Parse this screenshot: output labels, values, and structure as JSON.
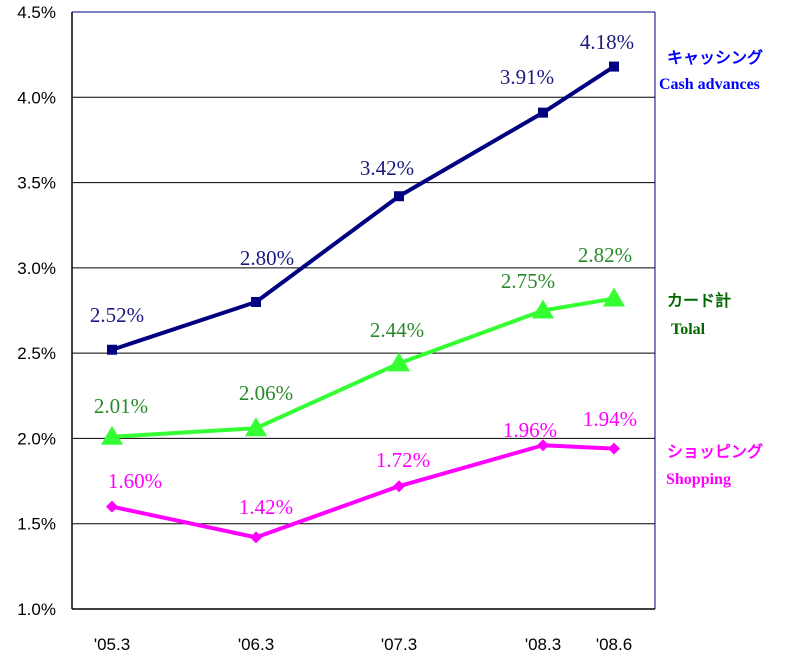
{
  "chart_data": {
    "type": "line",
    "categories": [
      "'05.3",
      "'06.3",
      "'07.3",
      "'08.3",
      "'08.6"
    ],
    "ylim": [
      1.0,
      4.5
    ],
    "yticks": [
      "1.0%",
      "1.5%",
      "2.0%",
      "2.5%",
      "3.0%",
      "3.5%",
      "4.0%",
      "4.5%"
    ],
    "grid": true,
    "legend_placement": "right",
    "series": [
      {
        "name": "キャッシング",
        "name_en": "Cash advances",
        "values": [
          2.52,
          2.8,
          3.42,
          3.91,
          4.18
        ],
        "labels": [
          "2.52%",
          "2.80%",
          "3.42%",
          "3.91%",
          "4.18%"
        ],
        "color": "#000080",
        "label_color": "#1a1a80",
        "legend_color": "#0000ff",
        "marker": "square"
      },
      {
        "name": "カード計",
        "name_en": "Tolal",
        "values": [
          2.01,
          2.06,
          2.44,
          2.75,
          2.82
        ],
        "labels": [
          "2.01%",
          "2.06%",
          "2.44%",
          "2.75%",
          "2.82%"
        ],
        "color": "#33ff33",
        "label_color": "#2a8a2a",
        "legend_color": "#006600",
        "marker": "triangle"
      },
      {
        "name": "ショッピング",
        "name_en": "Shopping",
        "values": [
          1.6,
          1.42,
          1.72,
          1.96,
          1.94
        ],
        "labels": [
          "1.60%",
          "1.42%",
          "1.72%",
          "1.96%",
          "1.94%"
        ],
        "color": "#ff00ff",
        "label_color": "#ff00ff",
        "legend_color": "#ff00ff",
        "marker": "diamond"
      }
    ]
  }
}
